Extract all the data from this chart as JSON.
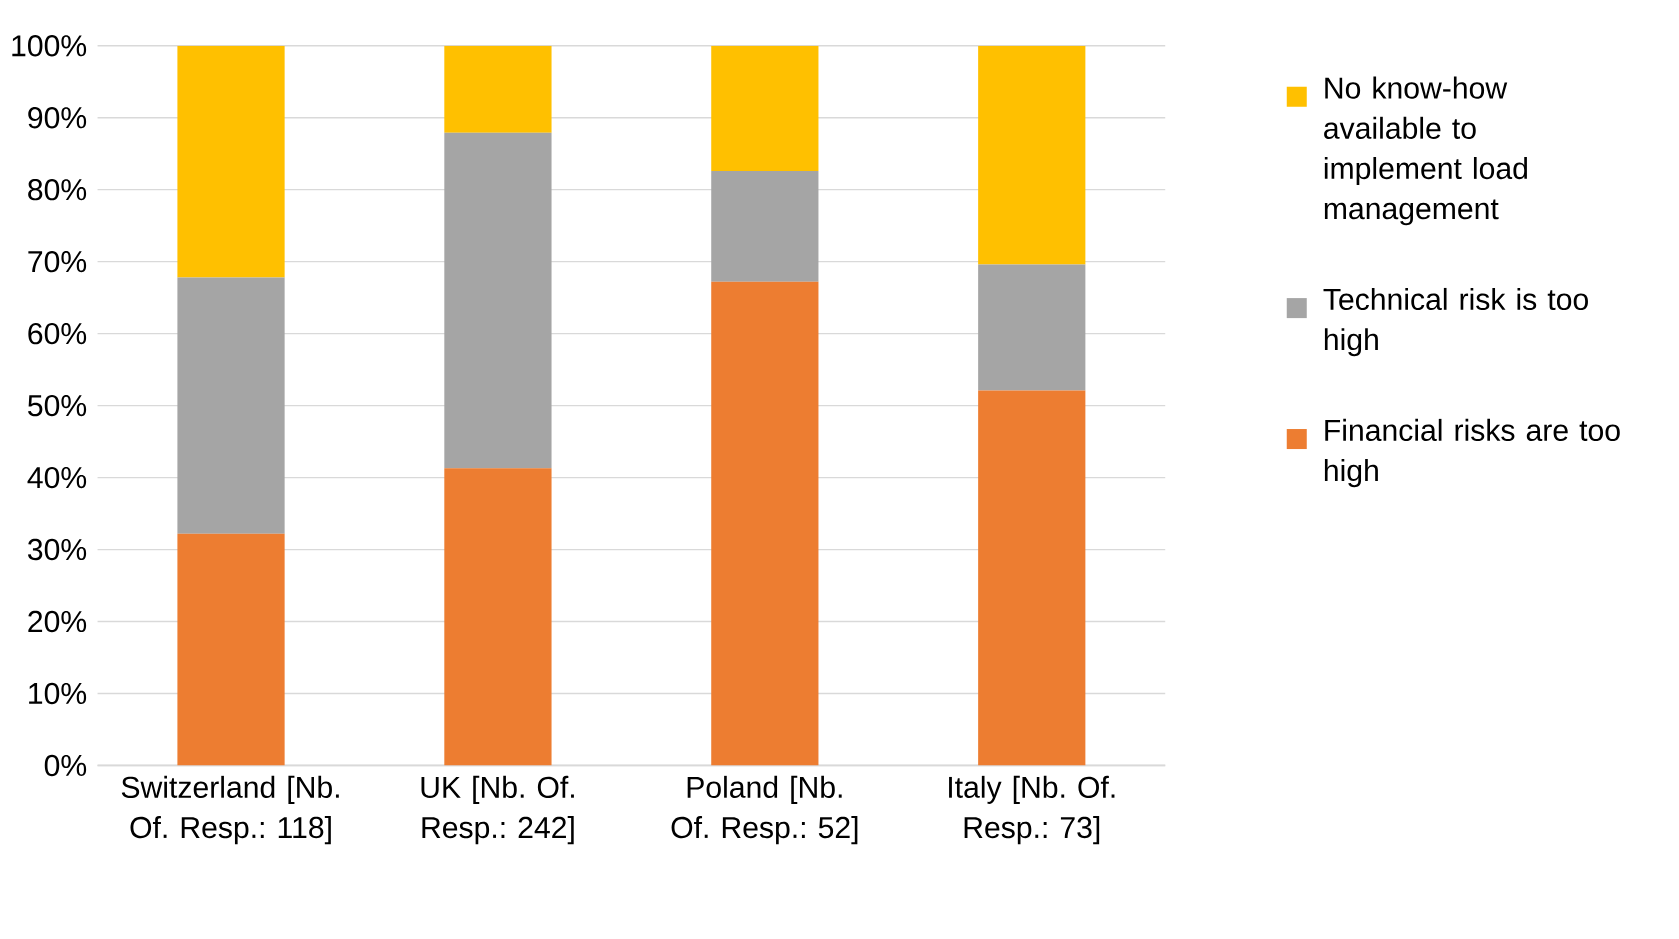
{
  "chart_data": {
    "type": "bar",
    "stacked": true,
    "grid": "y",
    "legend": "right",
    "categories": [
      "Switzerland [Nb. Of. Resp.: 118]",
      "UK [Nb. Of. Resp.: 242]",
      "Poland [Nb. Of. Resp.: 52]",
      "Italy [Nb. Of. Resp.: 73]"
    ],
    "series": [
      {
        "name": "Financial risks are too high",
        "color": "#ed7d31",
        "values": [
          32.2,
          41.3,
          67.2,
          52.1
        ]
      },
      {
        "name": "Technical risk is too high",
        "color": "#a5a5a5",
        "values": [
          35.6,
          46.6,
          15.4,
          17.5
        ]
      },
      {
        "name": "No know-how available to implement load management",
        "color": "#ffc000",
        "values": [
          32.2,
          12.1,
          17.4,
          30.4
        ]
      }
    ],
    "ylim": [
      0,
      100
    ],
    "yticks": [
      {
        "value": 0,
        "label": "0%"
      },
      {
        "value": 10,
        "label": "10%"
      },
      {
        "value": 20,
        "label": "20%"
      },
      {
        "value": 30,
        "label": "30%"
      },
      {
        "value": 40,
        "label": "40%"
      },
      {
        "value": 50,
        "label": "50%"
      },
      {
        "value": 60,
        "label": "60%"
      },
      {
        "value": 70,
        "label": "70%"
      },
      {
        "value": 80,
        "label": "80%"
      },
      {
        "value": 90,
        "label": "90%"
      },
      {
        "value": 100,
        "label": "100%"
      }
    ]
  }
}
